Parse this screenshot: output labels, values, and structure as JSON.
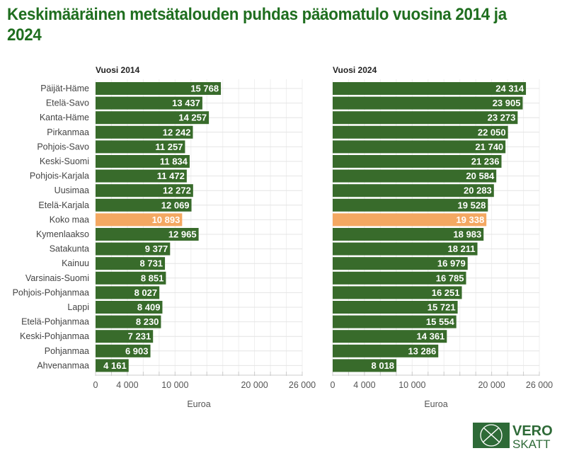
{
  "title": "Keskimääräinen metsätalouden puhdas pääomatulo vuosina 2014 ja 2024",
  "colors": {
    "bar": "#386b2b",
    "highlight": "#f4a862",
    "title": "#1f6e1f",
    "grid": "#e4e4e4"
  },
  "logo": {
    "text1": "VERO",
    "text2": "SKATT"
  },
  "chart_data": [
    {
      "type": "bar",
      "orientation": "horizontal",
      "title": "Vuosi 2014",
      "xlabel": "Euroa",
      "xlim": [
        0,
        26000
      ],
      "xticks": [
        0,
        4000,
        10000,
        20000,
        26000
      ],
      "xtick_labels": [
        "0",
        "4 000",
        "10 000",
        "20 000",
        "26 000"
      ],
      "highlight": "Koko maa",
      "categories": [
        "Päijät-Häme",
        "Etelä-Savo",
        "Kanta-Häme",
        "Pirkanmaa",
        "Pohjois-Savo",
        "Keski-Suomi",
        "Pohjois-Karjala",
        "Uusimaa",
        "Etelä-Karjala",
        "Koko maa",
        "Kymenlaakso",
        "Satakunta",
        "Kainuu",
        "Varsinais-Suomi",
        "Pohjois-Pohjanmaa",
        "Lappi",
        "Etelä-Pohjanmaa",
        "Keski-Pohjanmaa",
        "Pohjanmaa",
        "Ahvenanmaa"
      ],
      "values": [
        15768,
        13437,
        14257,
        12242,
        11257,
        11834,
        11472,
        12272,
        12069,
        10893,
        12965,
        9377,
        8731,
        8851,
        8027,
        8409,
        8230,
        7231,
        6903,
        4161
      ],
      "value_labels": [
        "15 768",
        "13 437",
        "14 257",
        "12 242",
        "11 257",
        "11 834",
        "11 472",
        "12 272",
        "12 069",
        "10 893",
        "12 965",
        "9 377",
        "8 731",
        "8 851",
        "8 027",
        "8 409",
        "8 230",
        "7 231",
        "6 903",
        "4 161"
      ]
    },
    {
      "type": "bar",
      "orientation": "horizontal",
      "title": "Vuosi 2024",
      "xlabel": "Euroa",
      "xlim": [
        0,
        26000
      ],
      "xticks": [
        0,
        4000,
        10000,
        20000,
        26000
      ],
      "xtick_labels": [
        "0",
        "4 000",
        "10 000",
        "20 000",
        "26 000"
      ],
      "highlight": "Koko maa",
      "values": [
        24314,
        23905,
        23273,
        22050,
        21740,
        21236,
        20584,
        20283,
        19528,
        19338,
        18983,
        18211,
        16979,
        16785,
        16251,
        15721,
        15554,
        14361,
        13286,
        8018
      ],
      "value_labels": [
        "24 314",
        "23 905",
        "23 273",
        "22 050",
        "21 740",
        "21 236",
        "20 584",
        "20 283",
        "19 528",
        "19 338",
        "18 983",
        "18 211",
        "16 979",
        "16 785",
        "16 251",
        "15 721",
        "15 554",
        "14 361",
        "13 286",
        "8 018"
      ]
    }
  ]
}
